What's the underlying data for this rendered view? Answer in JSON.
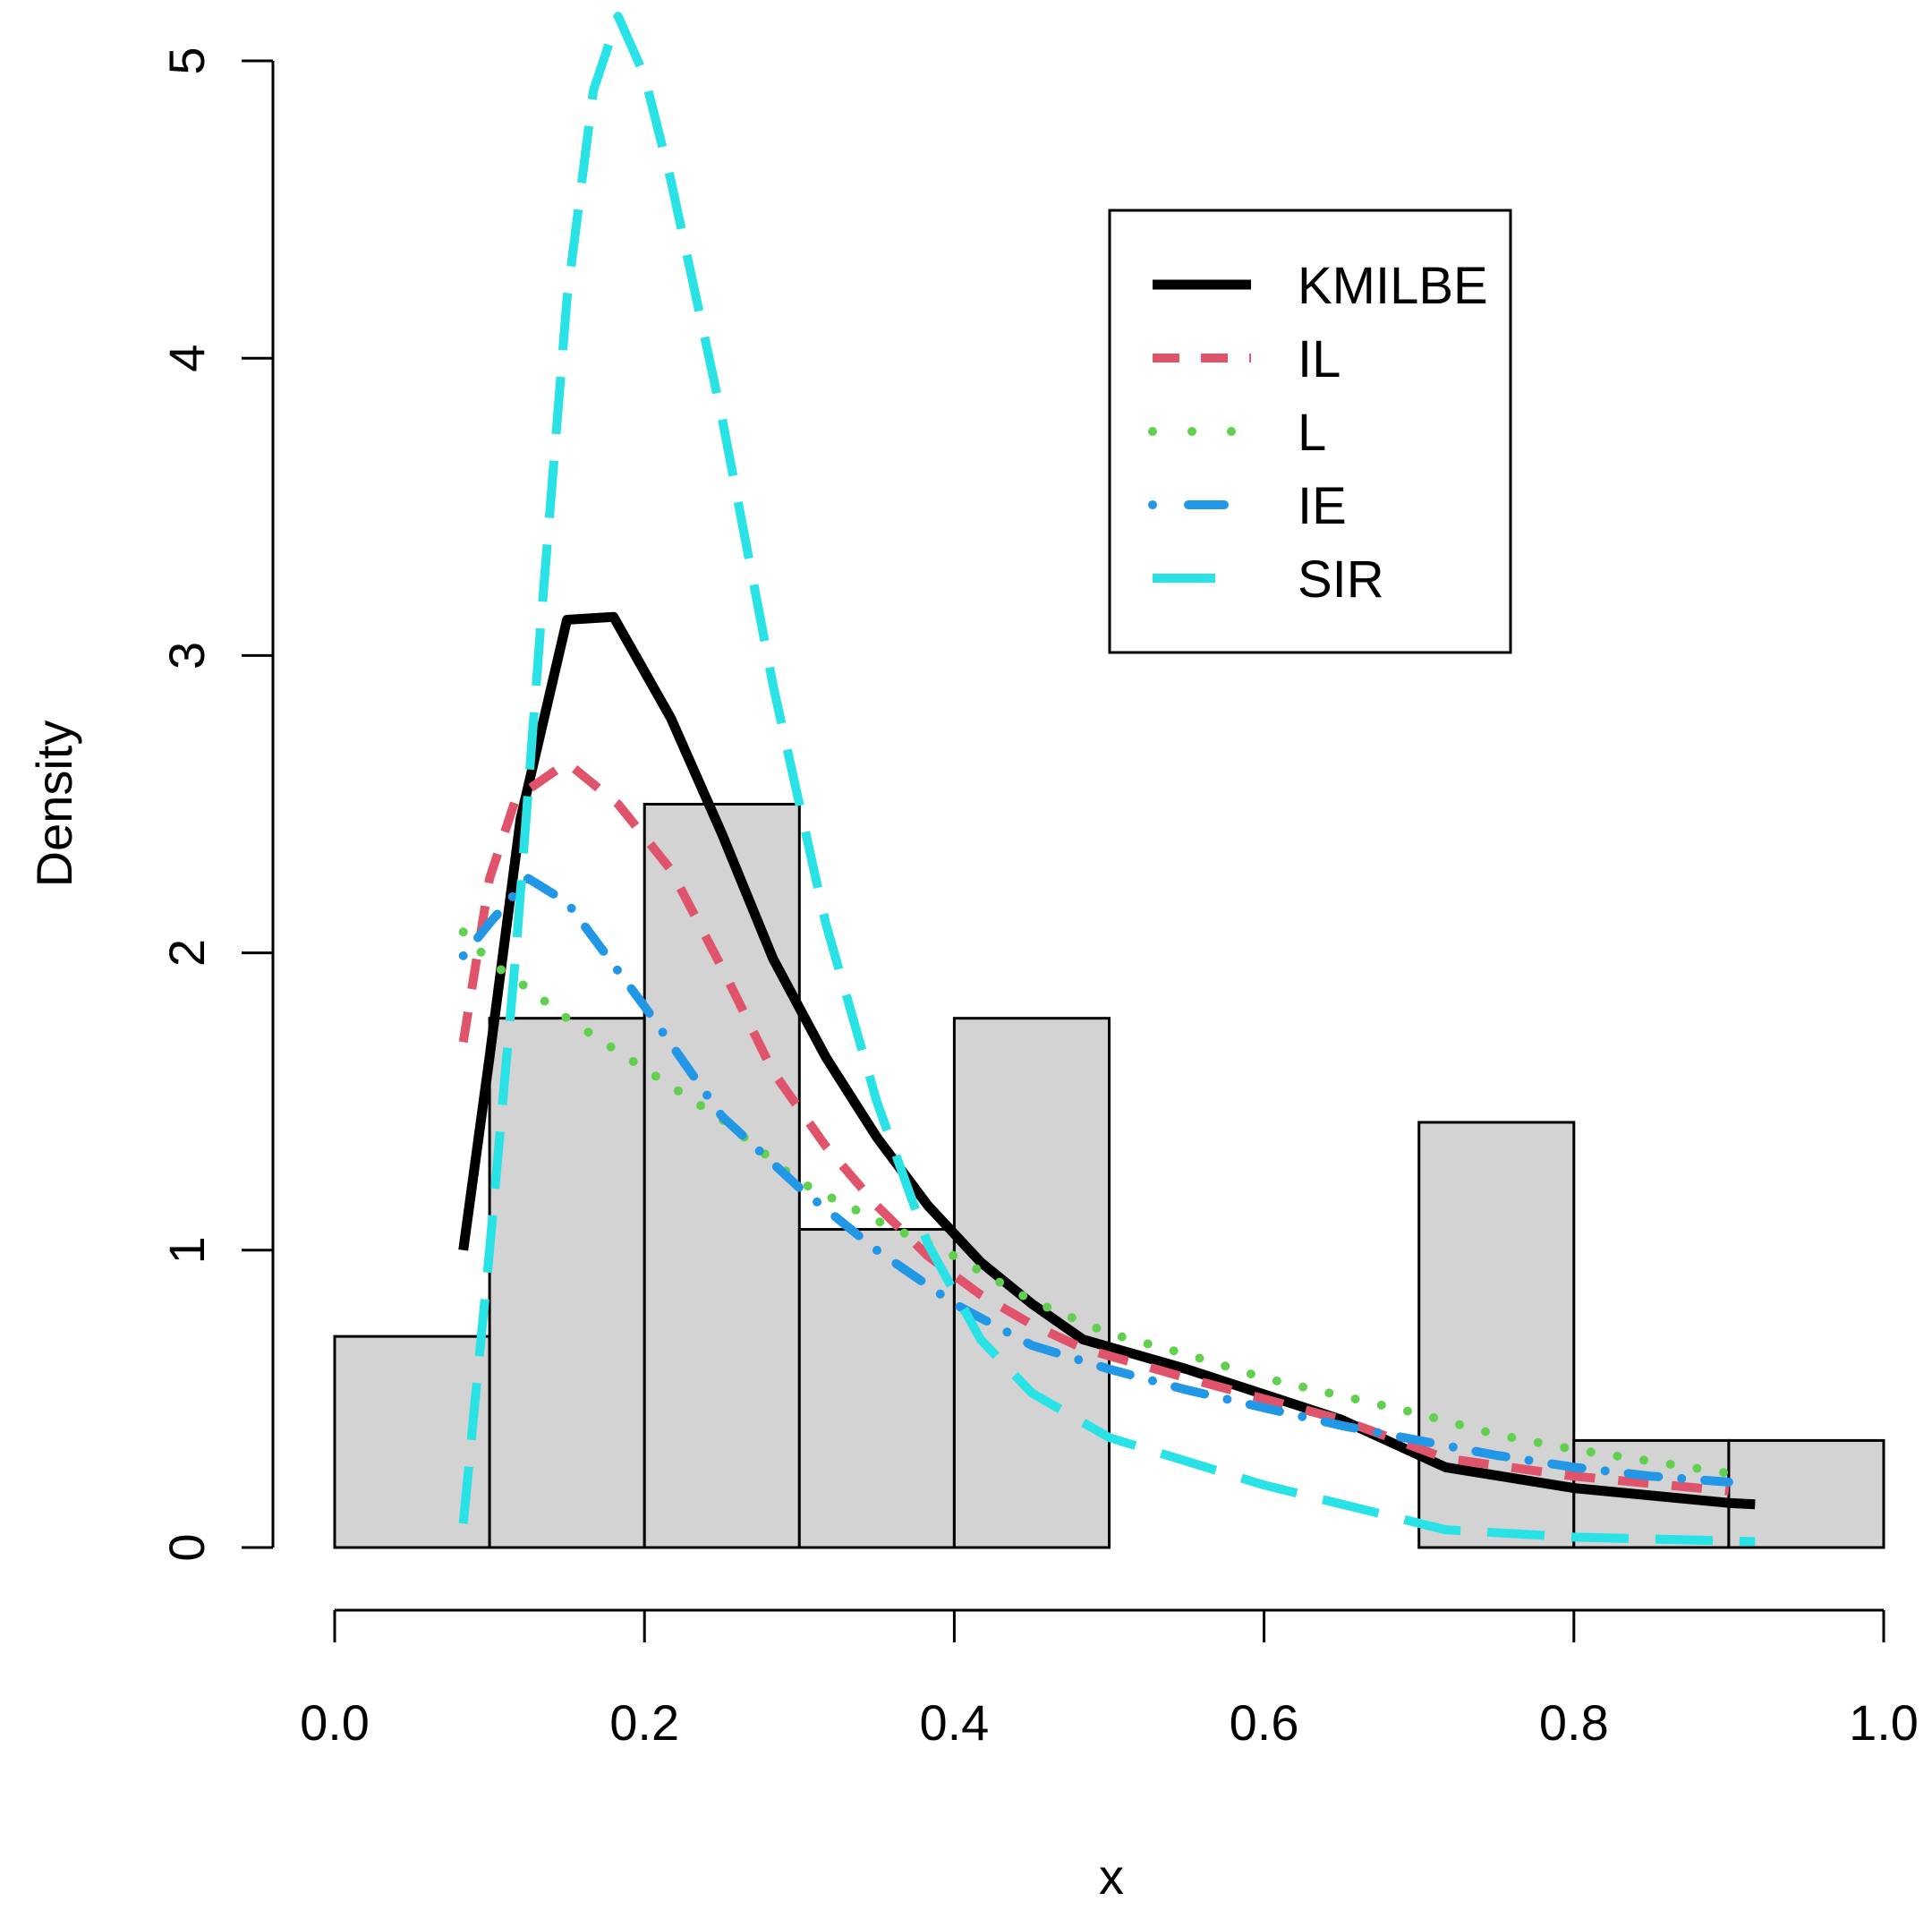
{
  "chart_data": {
    "type": "histogram_with_density_lines",
    "title": "",
    "xlabel": "x",
    "ylabel": "Density",
    "xlim": [
      0.0,
      1.0
    ],
    "ylim": [
      0,
      5
    ],
    "x_ticks": [
      "0.0",
      "0.2",
      "0.4",
      "0.6",
      "0.8",
      "1.0"
    ],
    "y_ticks": [
      "0",
      "1",
      "2",
      "3",
      "4",
      "5"
    ],
    "histogram": {
      "fill": "#d3d3d3",
      "bins": [
        {
          "from": 0.0,
          "to": 0.1,
          "density": 0.71
        },
        {
          "from": 0.1,
          "to": 0.2,
          "density": 1.78
        },
        {
          "from": 0.2,
          "to": 0.3,
          "density": 2.5
        },
        {
          "from": 0.3,
          "to": 0.4,
          "density": 1.07
        },
        {
          "from": 0.4,
          "to": 0.5,
          "density": 1.78
        },
        {
          "from": 0.5,
          "to": 0.6,
          "density": 0.0
        },
        {
          "from": 0.6,
          "to": 0.7,
          "density": 0.0
        },
        {
          "from": 0.7,
          "to": 0.8,
          "density": 1.43
        },
        {
          "from": 0.8,
          "to": 0.9,
          "density": 0.36
        },
        {
          "from": 0.9,
          "to": 1.0,
          "density": 0.36
        }
      ]
    },
    "series": [
      {
        "name": "KMILBE",
        "color": "#000000",
        "dash": "solid",
        "points": [
          [
            0.083,
            1.0
          ],
          [
            0.1,
            1.65
          ],
          [
            0.12,
            2.45
          ],
          [
            0.15,
            3.12
          ],
          [
            0.18,
            3.13
          ],
          [
            0.217,
            2.79
          ],
          [
            0.25,
            2.4
          ],
          [
            0.283,
            1.98
          ],
          [
            0.317,
            1.65
          ],
          [
            0.35,
            1.38
          ],
          [
            0.383,
            1.15
          ],
          [
            0.417,
            0.96
          ],
          [
            0.45,
            0.82
          ],
          [
            0.483,
            0.7
          ],
          [
            0.55,
            0.6
          ],
          [
            0.65,
            0.43
          ],
          [
            0.717,
            0.27
          ],
          [
            0.8,
            0.2
          ],
          [
            0.9,
            0.15
          ],
          [
            0.917,
            0.145
          ]
        ]
      },
      {
        "name": "IL",
        "color": "#df536b",
        "dash": "dashed",
        "points": [
          [
            0.083,
            1.7
          ],
          [
            0.1,
            2.25
          ],
          [
            0.117,
            2.52
          ],
          [
            0.15,
            2.64
          ],
          [
            0.183,
            2.5
          ],
          [
            0.217,
            2.28
          ],
          [
            0.25,
            1.95
          ],
          [
            0.283,
            1.6
          ],
          [
            0.317,
            1.35
          ],
          [
            0.35,
            1.15
          ],
          [
            0.383,
            0.98
          ],
          [
            0.417,
            0.85
          ],
          [
            0.45,
            0.75
          ],
          [
            0.483,
            0.67
          ],
          [
            0.55,
            0.57
          ],
          [
            0.65,
            0.43
          ],
          [
            0.717,
            0.3
          ],
          [
            0.8,
            0.24
          ],
          [
            0.9,
            0.19
          ]
        ]
      },
      {
        "name": "L",
        "color": "#61d04f",
        "dash": "dotted",
        "points": [
          [
            0.083,
            2.07
          ],
          [
            0.1,
            1.97
          ],
          [
            0.125,
            1.88
          ],
          [
            0.15,
            1.78
          ],
          [
            0.2,
            1.61
          ],
          [
            0.25,
            1.44
          ],
          [
            0.3,
            1.23
          ],
          [
            0.35,
            1.1
          ],
          [
            0.4,
            0.98
          ],
          [
            0.45,
            0.83
          ],
          [
            0.5,
            0.72
          ],
          [
            0.55,
            0.65
          ],
          [
            0.6,
            0.57
          ],
          [
            0.65,
            0.51
          ],
          [
            0.7,
            0.45
          ],
          [
            0.75,
            0.38
          ],
          [
            0.8,
            0.33
          ],
          [
            0.85,
            0.29
          ],
          [
            0.9,
            0.25
          ]
        ]
      },
      {
        "name": "IE",
        "color": "#2297e6",
        "dash": "dotdash",
        "points": [
          [
            0.083,
            1.99
          ],
          [
            0.1,
            2.1
          ],
          [
            0.125,
            2.25
          ],
          [
            0.15,
            2.17
          ],
          [
            0.2,
            1.82
          ],
          [
            0.25,
            1.45
          ],
          [
            0.3,
            1.21
          ],
          [
            0.35,
            1.0
          ],
          [
            0.4,
            0.82
          ],
          [
            0.45,
            0.68
          ],
          [
            0.5,
            0.6
          ],
          [
            0.55,
            0.53
          ],
          [
            0.6,
            0.47
          ],
          [
            0.65,
            0.41
          ],
          [
            0.7,
            0.36
          ],
          [
            0.75,
            0.31
          ],
          [
            0.8,
            0.27
          ],
          [
            0.85,
            0.24
          ],
          [
            0.9,
            0.22
          ]
        ]
      },
      {
        "name": "SIR",
        "color": "#28e2e5",
        "dash": "longdash",
        "points": [
          [
            0.083,
            0.08
          ],
          [
            0.1,
            1.0
          ],
          [
            0.117,
            2.0
          ],
          [
            0.133,
            3.1
          ],
          [
            0.15,
            4.2
          ],
          [
            0.167,
            4.9
          ],
          [
            0.183,
            5.15
          ],
          [
            0.2,
            4.95
          ],
          [
            0.217,
            4.6
          ],
          [
            0.25,
            3.8
          ],
          [
            0.283,
            2.9
          ],
          [
            0.317,
            2.1
          ],
          [
            0.35,
            1.5
          ],
          [
            0.383,
            1.02
          ],
          [
            0.417,
            0.7
          ],
          [
            0.45,
            0.52
          ],
          [
            0.5,
            0.37
          ],
          [
            0.6,
            0.21
          ],
          [
            0.717,
            0.06
          ],
          [
            0.8,
            0.035
          ],
          [
            0.917,
            0.02
          ]
        ]
      }
    ],
    "legend": {
      "position": "top-right",
      "entries": [
        "KMILBE",
        "IL",
        "L",
        "IE",
        "SIR"
      ]
    }
  }
}
